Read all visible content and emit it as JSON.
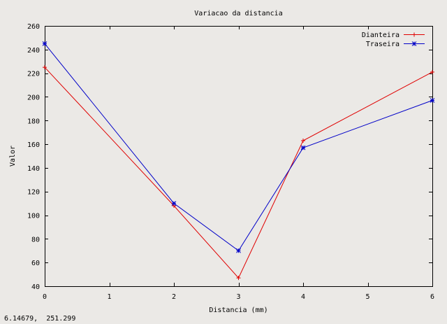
{
  "window": {
    "status_readout": "6.14679,  251.299"
  },
  "chart_data": {
    "type": "line",
    "title": "Variacao da distancia",
    "xlabel": "Distancia (mm)",
    "ylabel": "Valor",
    "xlim": [
      0,
      6
    ],
    "ylim": [
      40,
      260
    ],
    "xticks": [
      0,
      1,
      2,
      3,
      4,
      5,
      6
    ],
    "yticks": [
      40,
      60,
      80,
      100,
      120,
      140,
      160,
      180,
      200,
      220,
      240,
      260
    ],
    "grid": false,
    "legend_position": "top-right",
    "series": [
      {
        "name": "Dianteira",
        "color": "#e00000",
        "marker": "plus",
        "x": [
          0,
          2,
          3,
          4,
          6
        ],
        "y": [
          225,
          108,
          47,
          163,
          221
        ]
      },
      {
        "name": "Traseira",
        "color": "#0000c8",
        "marker": "star",
        "x": [
          0,
          2,
          3,
          4,
          6
        ],
        "y": [
          245,
          110,
          70,
          157,
          197
        ]
      }
    ]
  }
}
